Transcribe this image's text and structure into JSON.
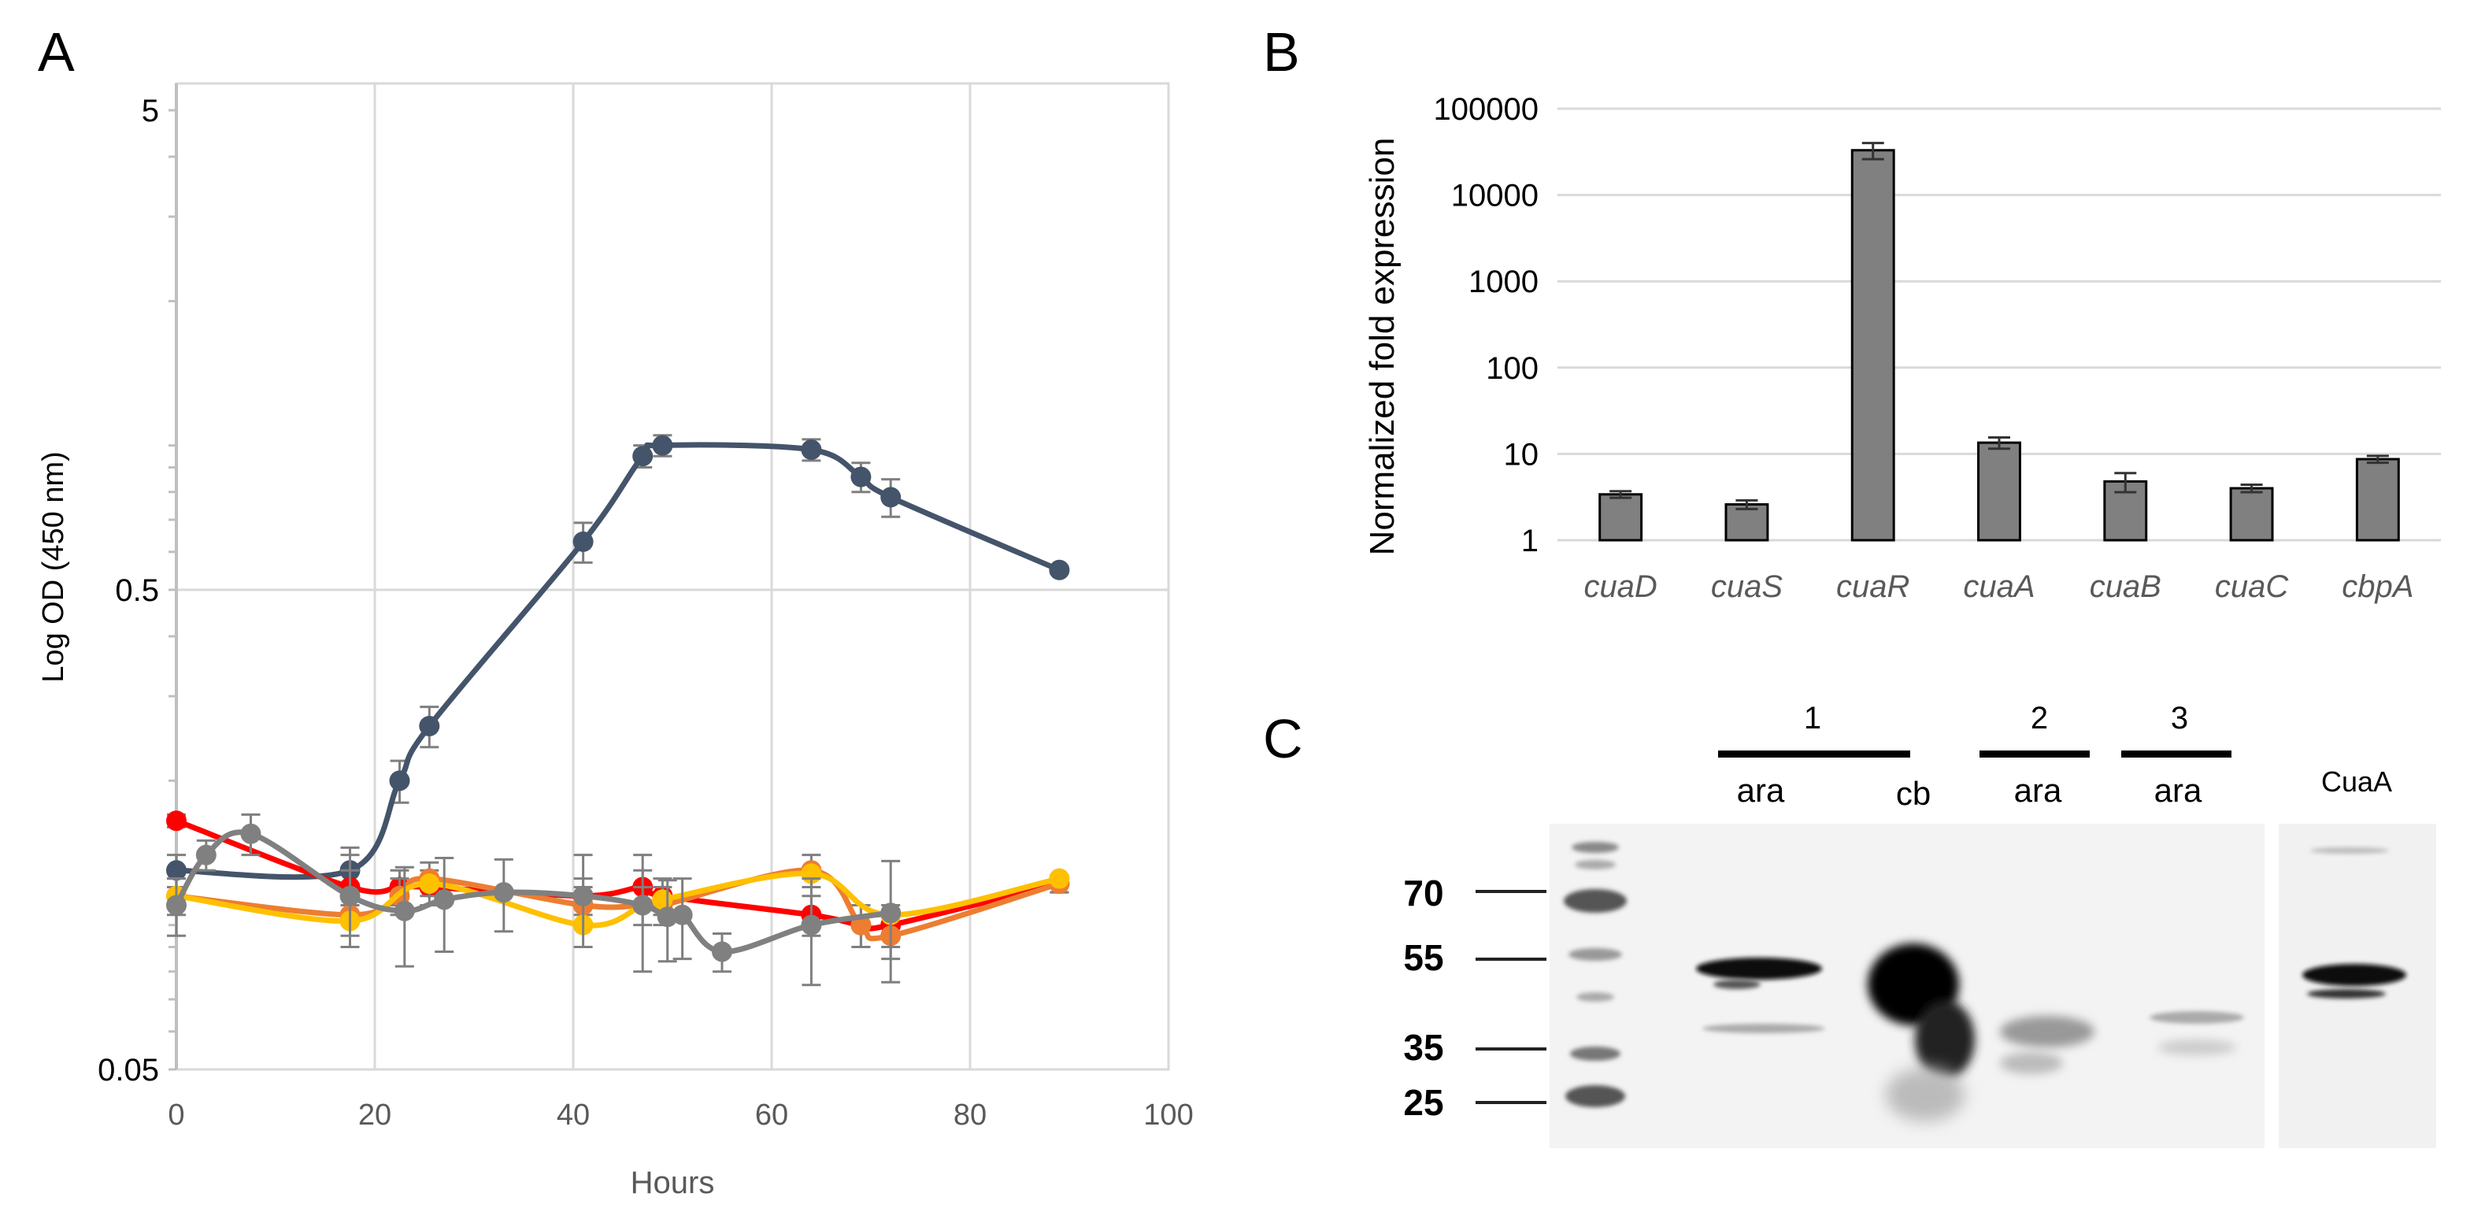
{
  "panels": {
    "A": "A",
    "B": "B",
    "C": "C"
  },
  "chart_data": [
    {
      "panel": "A",
      "type": "line",
      "title": "",
      "xlabel": "Hours",
      "ylabel": "Log OD (450 nm)",
      "xlim": [
        0,
        100
      ],
      "xticks": [
        0,
        20,
        40,
        60,
        80,
        100
      ],
      "ylim": [
        0.05,
        5
      ],
      "yscale": "log",
      "yticks": [
        0.05,
        0.5,
        5
      ],
      "ytick_labels": [
        "0.05",
        "0.5",
        "5"
      ],
      "grid": true,
      "legend": "none",
      "series": [
        {
          "color": "#44546A",
          "x": [
            0,
            17.5,
            22.5,
            25.5,
            41,
            47,
            49,
            64,
            69,
            72,
            89
          ],
          "y": [
            0.13,
            0.13,
            0.2,
            0.26,
            0.63,
            0.95,
            1.0,
            0.98,
            0.86,
            0.78,
            0.55
          ],
          "err": [
            0.01,
            0.015,
            0.02,
            0.025,
            0.06,
            0.05,
            0.05,
            0.05,
            0.06,
            0.07,
            0.01
          ]
        },
        {
          "color": "#FF0000",
          "x": [
            0,
            17.5,
            22.5,
            25.5,
            41,
            47,
            49,
            64,
            69,
            72,
            89
          ],
          "y": [
            0.165,
            0.12,
            0.12,
            0.12,
            0.115,
            0.12,
            0.115,
            0.105,
            0.1,
            0.1,
            0.122
          ],
          "err": [
            0.005,
            0.01,
            0.01,
            0.01,
            0.01,
            0.01,
            0.01,
            0.01,
            0.01,
            0.01,
            0.005
          ]
        },
        {
          "color": "#ED7D31",
          "x": [
            0,
            17.5,
            22.5,
            25.5,
            41,
            47,
            49,
            64,
            69,
            72,
            89
          ],
          "y": [
            0.115,
            0.105,
            0.115,
            0.125,
            0.11,
            0.11,
            0.11,
            0.13,
            0.1,
            0.095,
            0.122
          ],
          "err": [
            0.01,
            0.01,
            0.01,
            0.01,
            0.01,
            0.01,
            0.01,
            0.01,
            0.01,
            0.01,
            0.005
          ]
        },
        {
          "color": "#FFC000",
          "x": [
            0,
            17.5,
            25.5,
            41,
            47,
            49,
            64,
            72,
            89
          ],
          "y": [
            0.115,
            0.102,
            0.122,
            0.1,
            0.11,
            0.113,
            0.128,
            0.105,
            0.125
          ],
          "err": [
            0,
            0,
            0,
            0,
            0,
            0,
            0,
            0,
            0
          ]
        },
        {
          "color": "#808080",
          "x": [
            0,
            3,
            7.5,
            17.5,
            23,
            27,
            33,
            41,
            47,
            49.5,
            51,
            55,
            64,
            72
          ],
          "y": [
            0.11,
            0.14,
            0.155,
            0.115,
            0.107,
            0.113,
            0.117,
            0.115,
            0.11,
            0.104,
            0.105,
            0.088,
            0.1,
            0.106
          ],
          "err": [
            0.015,
            0.01,
            0.015,
            0.025,
            0.025,
            0.025,
            0.02,
            0.025,
            0.03,
            0.02,
            0.02,
            0.008,
            0.025,
            0.03
          ]
        }
      ]
    },
    {
      "panel": "B",
      "type": "bar",
      "title": "",
      "xlabel": "",
      "ylabel": "Normalized fold expression",
      "yscale": "log",
      "ylim": [
        1,
        100000
      ],
      "yticks": [
        1,
        10,
        100,
        1000,
        10000,
        100000
      ],
      "ytick_labels": [
        "1",
        "10",
        "100",
        "1000",
        "10000",
        "100000"
      ],
      "categories": [
        "cuaD",
        "cuaS",
        "cuaR",
        "cuaA",
        "cuaB",
        "cuaC",
        "cbpA"
      ],
      "values": [
        3.4,
        2.6,
        33000,
        13.5,
        4.8,
        4.0,
        8.7
      ],
      "errors": [
        0.3,
        0.3,
        7000,
        2.0,
        1.2,
        0.4,
        0.8
      ],
      "bar_color": "#808080",
      "grid": true
    }
  ],
  "blot": {
    "lane_groups": [
      {
        "label": "1",
        "lanes": [
          "ara",
          "cb"
        ]
      },
      {
        "label": "2",
        "lanes": [
          "ara"
        ]
      },
      {
        "label": "3",
        "lanes": [
          "ara"
        ]
      }
    ],
    "reference_label": "CuaA",
    "markers": [
      "70",
      "55",
      "35",
      "25"
    ]
  }
}
